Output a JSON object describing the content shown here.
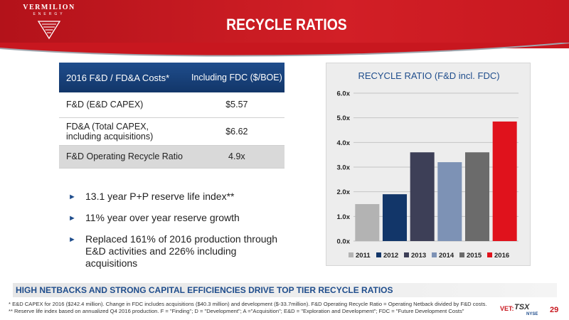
{
  "header": {
    "title": "RECYCLE RATIOS",
    "logo": {
      "name": "VERMILION",
      "sub": "ENERGY"
    },
    "colors": {
      "brand_red": "#c8171f",
      "navy": "#1f4d8c"
    }
  },
  "table": {
    "headers": [
      "2016 F&D / FD&A Costs*",
      "Including FDC ($/BOE)"
    ],
    "rows": [
      {
        "label": "F&D (E&D CAPEX)",
        "value": "$5.57"
      },
      {
        "label": "FD&A (Total CAPEX, including acquisitions)",
        "label_lines": [
          "FD&A (Total CAPEX,",
          "including acquisitions)"
        ],
        "value": "$6.62"
      },
      {
        "label": "F&D Operating Recycle Ratio",
        "value": "4.9x"
      }
    ]
  },
  "bullets": [
    {
      "lines": [
        "13.1 year P+P reserve life index**"
      ]
    },
    {
      "lines": [
        "11% year over year reserve growth"
      ]
    },
    {
      "lines": [
        "Replaced 161% of 2016 production through",
        "E&D activities and 226% including acquisitions"
      ]
    }
  ],
  "chart_data": {
    "type": "bar",
    "title": "RECYCLE RATIO (F&D incl. FDC)",
    "categories": [
      "2011",
      "2012",
      "2013",
      "2014",
      "2015",
      "2016"
    ],
    "values": [
      1.5,
      1.9,
      3.6,
      3.2,
      3.6,
      4.85
    ],
    "colors": [
      "#b3b3b3",
      "#123669",
      "#3d3f57",
      "#7d92b5",
      "#6b6b6b",
      "#e0121c"
    ],
    "ylim": [
      0,
      6
    ],
    "yticks": [
      "0.0x",
      "1.0x",
      "2.0x",
      "3.0x",
      "4.0x",
      "5.0x",
      "6.0x"
    ],
    "grid": true,
    "legend": "bottom"
  },
  "banner": "HIGH NETBACKS AND STRONG CAPITAL EFFICIENCIES DRIVE TOP TIER RECYCLE RATIOS",
  "footnotes": [
    "*  E&D CAPEX for 2016 ($242.4 million).  Change in FDC includes acquisitions ($40.3 million) and development ($-33.7million). F&D Operating Recycle Ratio = Operating Netback divided by F&D costs.",
    "** Reserve life index based on annualized Q4 2016 production. F = \"Finding\"; D = \"Development\"; A =\"Acquisition\"; E&D = \"Exploration and Development\"; FDC = \"Future Development Costs\""
  ],
  "tickers": {
    "vet": "VET:",
    "tsx": "TSX",
    "nyse": "NYSE"
  },
  "page_number": "29"
}
